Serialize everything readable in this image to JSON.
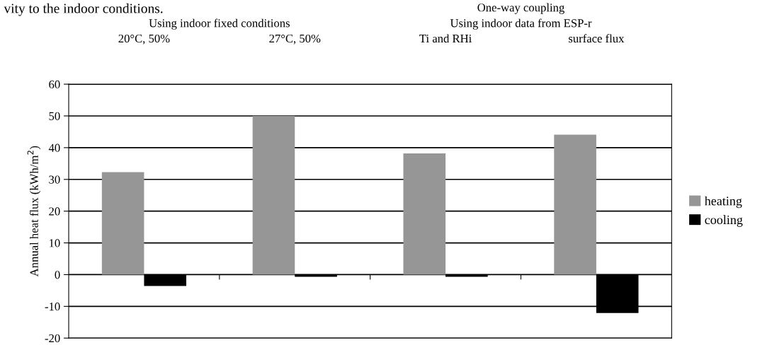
{
  "chart_data": {
    "type": "bar",
    "categories": [
      "20°C, 50%",
      "27°C, 50%",
      "Ti and RHi",
      "surface flux"
    ],
    "series": [
      {
        "name": "heating",
        "color": "#969696",
        "values": [
          32.3,
          50,
          38.2,
          44.1
        ]
      },
      {
        "name": "cooling",
        "color": "#000000",
        "values": [
          -3.6,
          -0.7,
          -0.7,
          -12.1
        ]
      }
    ],
    "ylabel": "Annual heat flux (kWh/m$^{2}$)",
    "ylim": [
      -20,
      60
    ],
    "yticks": [
      -20,
      -10,
      0,
      10,
      20,
      30,
      40,
      50,
      60
    ],
    "grid": "y",
    "legend": "right",
    "annotations": [
      "vity to the indoor conditions.",
      "Using indoor fixed conditions",
      "One-way coupling",
      "Using indoor data from ESP-r"
    ]
  }
}
